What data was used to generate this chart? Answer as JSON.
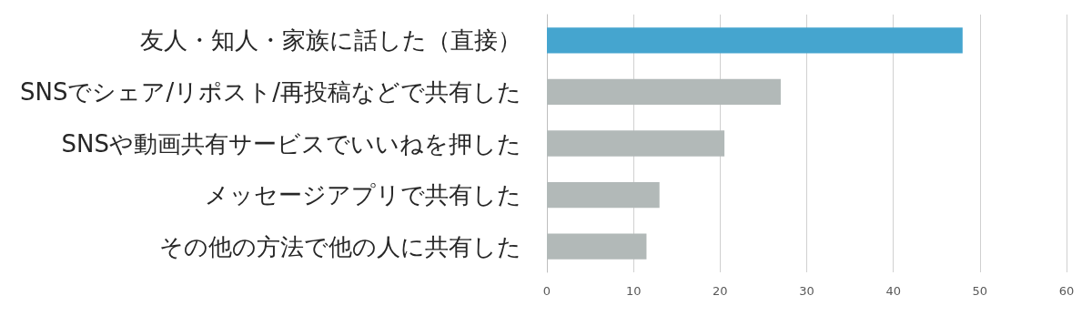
{
  "chart_data": {
    "type": "bar",
    "orientation": "horizontal",
    "categories": [
      "友人・知人・家族に話した（直接）",
      "SNSでシェア/リポスト/再投稿などで共有した",
      "SNSや動画共有サービスでいいねを押した",
      "メッセージアプリで共有した",
      "その他の方法で他の人に共有した"
    ],
    "values": [
      48,
      27,
      20.5,
      13,
      11.5
    ],
    "colors": [
      "#45a5cf",
      "#b2b9b8",
      "#b2b9b8",
      "#b2b9b8",
      "#b2b9b8"
    ],
    "xlim": [
      0,
      60
    ],
    "xticks": [
      0,
      10,
      20,
      30,
      40,
      50,
      60
    ],
    "grid": "x"
  }
}
